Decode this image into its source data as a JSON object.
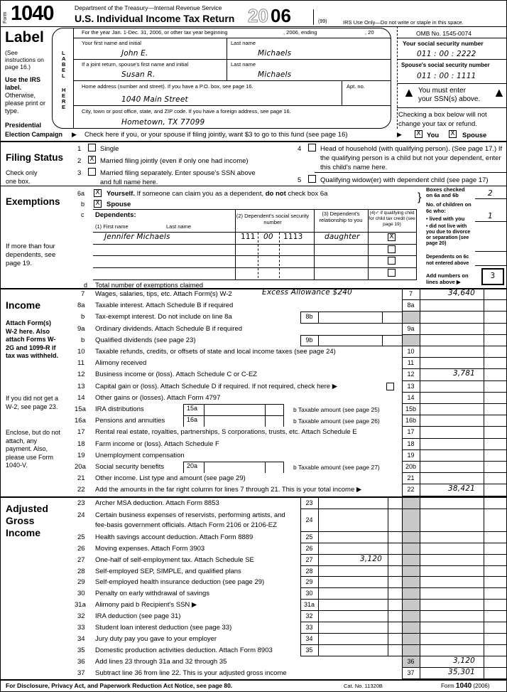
{
  "header": {
    "form_word": "Form",
    "form_number": "1040",
    "dept": "Department of the Treasury—Internal Revenue Service",
    "title": "U.S. Individual Income Tax Return",
    "year_outline": "20",
    "year_bold": "06",
    "code": "(99)",
    "irs_use": "IRS Use Only—Do not write or staple in this space.",
    "tax_year_line": "For the year Jan. 1-Dec. 31, 2006, or other tax year beginning",
    "ending": ", 2006, ending",
    "twenty": ", 20",
    "omb": "OMB No. 1545-0074"
  },
  "label": {
    "title": "Label",
    "see": "(See instructions on page 16.)",
    "use": "Use the IRS label.",
    "otherwise": "Otherwise, please print or type.",
    "vertical1": "LABEL",
    "vertical2": "HERE",
    "presidential": "Presidential",
    "election": "Election Campaign"
  },
  "name": {
    "first_label": "Your first name and initial",
    "first": "John E.",
    "last_label": "Last name",
    "last": "Michaels",
    "spouse_first_label": "If a joint return, spouse's first name and initial",
    "spouse_first": "Susan R.",
    "spouse_last_label": "Last name",
    "spouse_last": "Michaels",
    "address_label": "Home address (number and street). If you have a P.O. box, see page 16.",
    "address": "1040 Main Street",
    "apt_label": "Apt. no.",
    "city_label": "City, town or post office, state, and ZIP code. If you have a foreign address, see page 16.",
    "city": "Hometown, TX 77099"
  },
  "ssn": {
    "your_label": "Your social security number",
    "your": "011 : 00 : 2222",
    "spouse_label": "Spouse's social security number",
    "spouse": "011 : 00 : 1111",
    "must1": "You must enter",
    "must2": "your SSN(s) above.",
    "checking1": "Checking a box below will not",
    "checking2": "change your tax or refund."
  },
  "campaign": {
    "text": "Check here if you, or your spouse if filing jointly, want $3 to go to this fund (see page 16)",
    "you_label": "You",
    "spouse_label": "Spouse",
    "you_checked": "X",
    "spouse_checked": "X"
  },
  "filing": {
    "title": "Filing Status",
    "note": "Check only one box.",
    "options": [
      {
        "n": "1",
        "label": "Single",
        "mark": ""
      },
      {
        "n": "2",
        "label": "Married filing jointly (even if only one had income)",
        "mark": "X"
      },
      {
        "n": "3",
        "label": "Married filing separately. Enter spouse's SSN above",
        "label2": "and full name here.",
        "mark": ""
      },
      {
        "n": "4",
        "label": "Head of household (with qualifying person). (See page 17.) If",
        "label2": "the qualifying person is a child but not your dependent, enter",
        "label3": "this child's name here.",
        "mark": ""
      },
      {
        "n": "5",
        "label": "Qualifying widow(er) with dependent child (see page 17)",
        "mark": ""
      }
    ]
  },
  "exemptions": {
    "title": "Exemptions",
    "more": "If more than four dependents, see page 19.",
    "a_n": "6a",
    "a_label": "Yourself.",
    "a_text": "If someone can claim you as a dependent,",
    "a_not": "do not",
    "a_text2": "check box 6a",
    "a_mark": "X",
    "b_n": "b",
    "b_label": "Spouse",
    "b_mark": "X",
    "c_n": "c",
    "c_label": "Dependents:",
    "col1a": "(1) First name",
    "col1b": "Last name",
    "col2": "(2) Dependent's social security number",
    "col3": "(3) Dependent's relationship to you",
    "col4": "(4)✓ if qualifying child for child tax credit (see page 19)",
    "dependents": [
      {
        "name": "Jennifer Michaels",
        "ssn1": "111",
        "ssn2": "00",
        "ssn3": "1113",
        "rel": "daughter",
        "mark": "X"
      },
      {
        "name": "",
        "ssn1": "",
        "ssn2": "",
        "ssn3": "",
        "rel": "",
        "mark": ""
      },
      {
        "name": "",
        "ssn1": "",
        "ssn2": "",
        "ssn3": "",
        "rel": "",
        "mark": ""
      },
      {
        "name": "",
        "ssn1": "",
        "ssn2": "",
        "ssn3": "",
        "rel": "",
        "mark": ""
      }
    ],
    "d_n": "d",
    "d_label": "Total number of exemptions claimed",
    "side": {
      "boxes_label": "Boxes checked on 6a and 6b",
      "boxes": "2",
      "children_label": "No. of children on 6c who:",
      "lived_label": "• lived with you",
      "lived": "1",
      "notlive_label": "• did not live with you due to divorce or separation (see page 20)",
      "notlive": "",
      "notentered_label": "Dependents on 6c not entered above",
      "notentered": "",
      "add_label": "Add numbers on lines above ▶",
      "total": "3"
    }
  },
  "income": {
    "title": "Income",
    "side1": "Attach Form(s) W-2 here. Also attach Forms W-2G and 1099-R if tax was withheld.",
    "side2": "If you did not get a W-2, see page 23.",
    "side3": "Enclose, but do not attach, any payment. Also, please use Form 1040-V.",
    "annotation": "Excess Allowance $240",
    "lines": [
      {
        "n": "7",
        "label": "Wages, salaries, tips, etc. Attach Form(s) W-2",
        "box": "7",
        "value": "34,640"
      },
      {
        "n": "8a",
        "label": "Taxable interest. Attach Schedule B if required",
        "box": "8a",
        "value": ""
      },
      {
        "n": "b",
        "label": "Tax-exempt interest. Do not include on line 8a",
        "mid": "8b",
        "value": ""
      },
      {
        "n": "9a",
        "label": "Ordinary dividends. Attach Schedule B if required",
        "box": "9a",
        "value": ""
      },
      {
        "n": "b",
        "label": "Qualified dividends (see page 23)",
        "mid": "9b",
        "value": ""
      },
      {
        "n": "10",
        "label": "Taxable refunds, credits, or offsets of state and local income taxes (see page 24)",
        "box": "10",
        "value": ""
      },
      {
        "n": "11",
        "label": "Alimony received",
        "box": "11",
        "value": ""
      },
      {
        "n": "12",
        "label": "Business income or (loss). Attach Schedule C or C-EZ",
        "box": "12",
        "value": "3,781"
      },
      {
        "n": "13",
        "label": "Capital gain or (loss). Attach Schedule D if required. If not required, check here ▶",
        "box": "13",
        "value": "",
        "check": true
      },
      {
        "n": "14",
        "label": "Other gains or (losses). Attach Form 4797",
        "box": "14",
        "value": ""
      },
      {
        "n": "15a",
        "label": "IRA distributions",
        "sub": "15a",
        "blabel": "b Taxable amount (see page 25)",
        "box": "15b",
        "value": ""
      },
      {
        "n": "16a",
        "label": "Pensions and annuities",
        "sub": "16a",
        "blabel": "b Taxable amount (see page 26)",
        "box": "16b",
        "value": ""
      },
      {
        "n": "17",
        "label": "Rental real estate, royalties, partnerships, S corporations, trusts, etc. Attach Schedule E",
        "box": "17",
        "value": ""
      },
      {
        "n": "18",
        "label": "Farm income or (loss). Attach Schedule F",
        "box": "18",
        "value": ""
      },
      {
        "n": "19",
        "label": "Unemployment compensation",
        "box": "19",
        "value": ""
      },
      {
        "n": "20a",
        "label": "Social security benefits",
        "sub": "20a",
        "blabel": "b Taxable amount (see page 27)",
        "box": "20b",
        "value": ""
      },
      {
        "n": "21",
        "label": "Other income. List type and amount (see page 29)",
        "box": "21",
        "value": ""
      },
      {
        "n": "22",
        "label": "Add the amounts in the far right column for lines 7 through 21. This is your total income ▶",
        "box": "22",
        "value": "38,421"
      }
    ]
  },
  "agi": {
    "title": "Adjusted Gross Income",
    "lines": [
      {
        "n": "23",
        "label": "Archer MSA deduction. Attach Form 8853",
        "mid": "23",
        "value": ""
      },
      {
        "n": "24",
        "label": "Certain business expenses of reservists, performing artists, and",
        "label2": "fee-basis government officials. Attach Form 2106 or 2106-EZ",
        "mid": "24",
        "value": ""
      },
      {
        "n": "25",
        "label": "Health savings account deduction. Attach Form 8889",
        "mid": "25",
        "value": ""
      },
      {
        "n": "26",
        "label": "Moving expenses. Attach Form 3903",
        "mid": "26",
        "value": ""
      },
      {
        "n": "27",
        "label": "One-half of self-employment tax. Attach Schedule SE",
        "mid": "27",
        "value": "3,120"
      },
      {
        "n": "28",
        "label": "Self-employed SEP, SIMPLE, and qualified plans",
        "mid": "28",
        "value": ""
      },
      {
        "n": "29",
        "label": "Self-employed health insurance deduction (see page 29)",
        "mid": "29",
        "value": ""
      },
      {
        "n": "30",
        "label": "Penalty on early withdrawal of savings",
        "mid": "30",
        "value": ""
      },
      {
        "n": "31a",
        "label": "Alimony paid   b Recipient's SSN ▶",
        "mid": "31a",
        "value": ""
      },
      {
        "n": "32",
        "label": "IRA deduction (see page 31)",
        "mid": "32",
        "value": ""
      },
      {
        "n": "33",
        "label": "Student loan interest deduction (see page 33)",
        "mid": "33",
        "value": ""
      },
      {
        "n": "34",
        "label": "Jury duty pay you gave to your employer",
        "mid": "34",
        "value": ""
      },
      {
        "n": "35",
        "label": "Domestic production activities deduction. Attach Form 8903",
        "mid": "35",
        "value": ""
      },
      {
        "n": "36",
        "label": "Add lines 23 through 31a and 32 through 35",
        "box": "36",
        "value": "3,120"
      },
      {
        "n": "37",
        "label": "Subtract line 36 from line 22. This is your adjusted gross income",
        "box": "37",
        "value": "35,301"
      }
    ]
  },
  "footer": {
    "privacy": "For Disclosure, Privacy Act, and Paperwork Reduction Act Notice, see page 80.",
    "cat": "Cat. No. 11320B",
    "form": "Form",
    "form_no": "1040",
    "year": "(2006)"
  }
}
